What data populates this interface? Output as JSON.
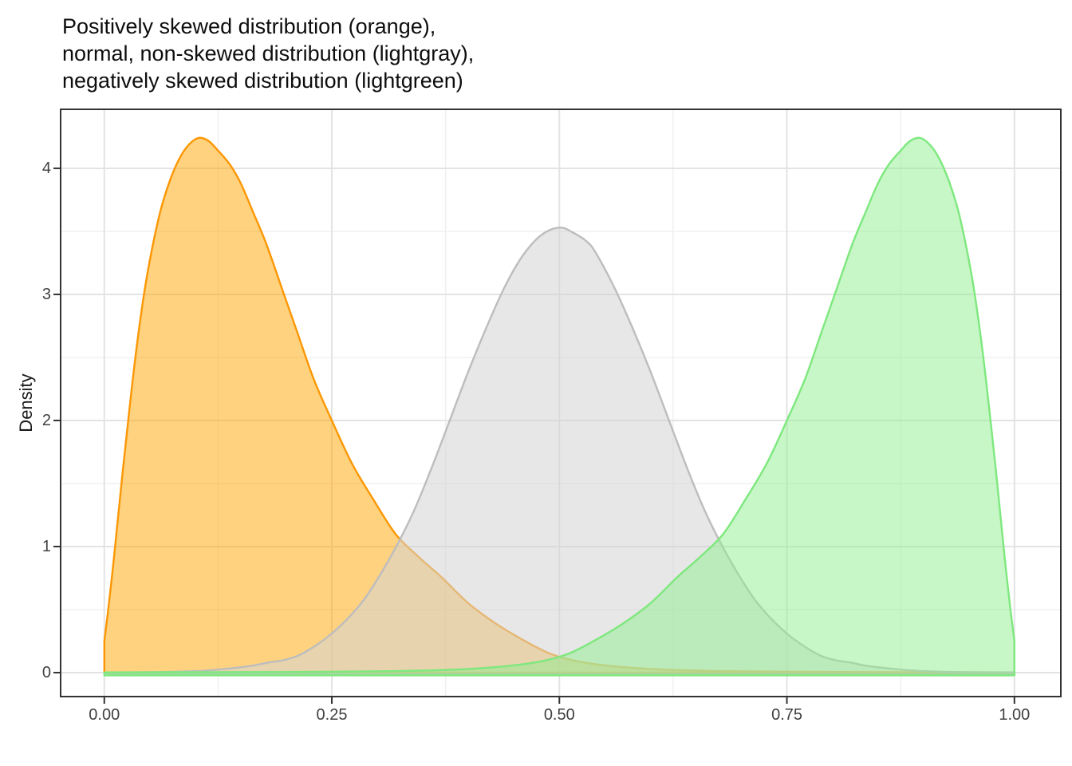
{
  "figure": {
    "title_lines": [
      "Positively skewed distribution (orange),",
      "normal, non-skewed distribution (lightgray),",
      "negatively skewed distribution (lightgreen)"
    ],
    "y_axis_title": "Density"
  },
  "chart_data": {
    "type": "area",
    "subtype": "overlapping-density-curves",
    "title": "Positively skewed distribution (orange),\nnormal, non-skewed distribution (lightgray),\nnegatively skewed distribution (lightgreen)",
    "xlabel": "",
    "ylabel": "Density",
    "legend": "none",
    "grid": "major+minor",
    "xlim": [
      -0.048,
      1.051
    ],
    "ylim": [
      -0.19,
      4.468
    ],
    "x_tick_values": [
      0,
      0.25,
      0.5,
      0.75,
      1
    ],
    "x_tick_labels": [
      "0.00",
      "0.25",
      "0.50",
      "0.75",
      "1.00"
    ],
    "y_tick_values": [
      0,
      1,
      2,
      3,
      4
    ],
    "y_tick_labels": [
      "0",
      "1",
      "2",
      "3",
      "4"
    ],
    "x_minor_ticks": [
      0.125,
      0.375,
      0.625,
      0.875
    ],
    "y_minor_ticks": [
      0.5,
      1.5,
      2.5,
      3.5
    ],
    "colors": {
      "background": "#FFFFFF",
      "panel_border": "#333333",
      "grid_major": "#E3E3E3",
      "grid_minor": "#F0F0F0",
      "axis_tick": "#333333",
      "tick_label": "#404040",
      "title_text": "#0D0D0D"
    },
    "series": [
      {
        "name": "positively-skewed",
        "label": "Positively skewed distribution (orange)",
        "stroke": "#FB9704",
        "fill": "#FFA500",
        "fill_opacity": 0.5,
        "baseline_offset": 0,
        "peak": {
          "x": 0.103,
          "density": 4.24
        },
        "points": [
          [
            0.0,
            0.25
          ],
          [
            0.004,
            0.48
          ],
          [
            0.009,
            0.8
          ],
          [
            0.014,
            1.15
          ],
          [
            0.02,
            1.58
          ],
          [
            0.027,
            2.05
          ],
          [
            0.035,
            2.55
          ],
          [
            0.044,
            3.02
          ],
          [
            0.053,
            3.38
          ],
          [
            0.062,
            3.67
          ],
          [
            0.072,
            3.9
          ],
          [
            0.082,
            4.07
          ],
          [
            0.092,
            4.18
          ],
          [
            0.103,
            4.24
          ],
          [
            0.114,
            4.22
          ],
          [
            0.125,
            4.14
          ],
          [
            0.138,
            4.03
          ],
          [
            0.15,
            3.88
          ],
          [
            0.163,
            3.66
          ],
          [
            0.178,
            3.4
          ],
          [
            0.195,
            3.05
          ],
          [
            0.212,
            2.7
          ],
          [
            0.23,
            2.33
          ],
          [
            0.25,
            2.0
          ],
          [
            0.272,
            1.66
          ],
          [
            0.295,
            1.38
          ],
          [
            0.32,
            1.1
          ],
          [
            0.345,
            0.92
          ],
          [
            0.37,
            0.76
          ],
          [
            0.4,
            0.55
          ],
          [
            0.43,
            0.39
          ],
          [
            0.46,
            0.26
          ],
          [
            0.49,
            0.15
          ],
          [
            0.52,
            0.09
          ],
          [
            0.56,
            0.05
          ],
          [
            0.61,
            0.025
          ],
          [
            0.68,
            0.012
          ],
          [
            0.76,
            0.006
          ],
          [
            0.85,
            0.004
          ],
          [
            0.93,
            0.003
          ],
          [
            1.0,
            0.002
          ]
        ]
      },
      {
        "name": "normal-non-skewed",
        "label": "normal, non-skewed distribution (lightgray)",
        "stroke": "#BDBDBD",
        "fill": "#D3D3D3",
        "fill_opacity": 0.55,
        "baseline_offset": 1.7,
        "peak": {
          "x": 0.5,
          "density": 3.53
        },
        "points": [
          [
            0.0,
            0.002
          ],
          [
            0.06,
            0.004
          ],
          [
            0.1,
            0.012
          ],
          [
            0.13,
            0.028
          ],
          [
            0.16,
            0.052
          ],
          [
            0.18,
            0.08
          ],
          [
            0.2,
            0.104
          ],
          [
            0.22,
            0.16
          ],
          [
            0.25,
            0.31
          ],
          [
            0.28,
            0.53
          ],
          [
            0.3,
            0.74
          ],
          [
            0.32,
            0.99
          ],
          [
            0.34,
            1.28
          ],
          [
            0.36,
            1.63
          ],
          [
            0.38,
            2.01
          ],
          [
            0.4,
            2.39
          ],
          [
            0.42,
            2.74
          ],
          [
            0.44,
            3.06
          ],
          [
            0.46,
            3.31
          ],
          [
            0.48,
            3.47
          ],
          [
            0.5,
            3.53
          ],
          [
            0.515,
            3.49
          ],
          [
            0.53,
            3.42
          ],
          [
            0.54,
            3.33
          ],
          [
            0.56,
            3.06
          ],
          [
            0.58,
            2.74
          ],
          [
            0.6,
            2.39
          ],
          [
            0.62,
            2.01
          ],
          [
            0.64,
            1.63
          ],
          [
            0.66,
            1.28
          ],
          [
            0.68,
            0.99
          ],
          [
            0.7,
            0.74
          ],
          [
            0.72,
            0.53
          ],
          [
            0.75,
            0.31
          ],
          [
            0.78,
            0.16
          ],
          [
            0.8,
            0.104
          ],
          [
            0.82,
            0.08
          ],
          [
            0.84,
            0.052
          ],
          [
            0.87,
            0.028
          ],
          [
            0.9,
            0.012
          ],
          [
            0.94,
            0.004
          ],
          [
            1.0,
            0.002
          ]
        ]
      },
      {
        "name": "negatively-skewed",
        "label": "negatively skewed distribution (lightgreen)",
        "stroke": "#7EE87E",
        "fill": "#90EE90",
        "fill_opacity": 0.5,
        "baseline_offset": 3.4,
        "peak": {
          "x": 0.897,
          "density": 4.24
        },
        "points": [
          [
            0.0,
            0.002
          ],
          [
            0.07,
            0.003
          ],
          [
            0.15,
            0.004
          ],
          [
            0.24,
            0.006
          ],
          [
            0.32,
            0.012
          ],
          [
            0.39,
            0.025
          ],
          [
            0.44,
            0.05
          ],
          [
            0.48,
            0.09
          ],
          [
            0.51,
            0.15
          ],
          [
            0.54,
            0.26
          ],
          [
            0.57,
            0.39
          ],
          [
            0.6,
            0.55
          ],
          [
            0.63,
            0.76
          ],
          [
            0.655,
            0.92
          ],
          [
            0.68,
            1.1
          ],
          [
            0.705,
            1.38
          ],
          [
            0.728,
            1.66
          ],
          [
            0.75,
            2.0
          ],
          [
            0.77,
            2.33
          ],
          [
            0.788,
            2.7
          ],
          [
            0.805,
            3.05
          ],
          [
            0.822,
            3.4
          ],
          [
            0.837,
            3.66
          ],
          [
            0.85,
            3.88
          ],
          [
            0.862,
            4.03
          ],
          [
            0.875,
            4.14
          ],
          [
            0.886,
            4.22
          ],
          [
            0.897,
            4.24
          ],
          [
            0.908,
            4.18
          ],
          [
            0.918,
            4.07
          ],
          [
            0.928,
            3.9
          ],
          [
            0.938,
            3.67
          ],
          [
            0.947,
            3.38
          ],
          [
            0.956,
            3.02
          ],
          [
            0.965,
            2.55
          ],
          [
            0.973,
            2.05
          ],
          [
            0.98,
            1.58
          ],
          [
            0.986,
            1.15
          ],
          [
            0.991,
            0.8
          ],
          [
            0.996,
            0.48
          ],
          [
            1.0,
            0.25
          ]
        ]
      }
    ]
  }
}
